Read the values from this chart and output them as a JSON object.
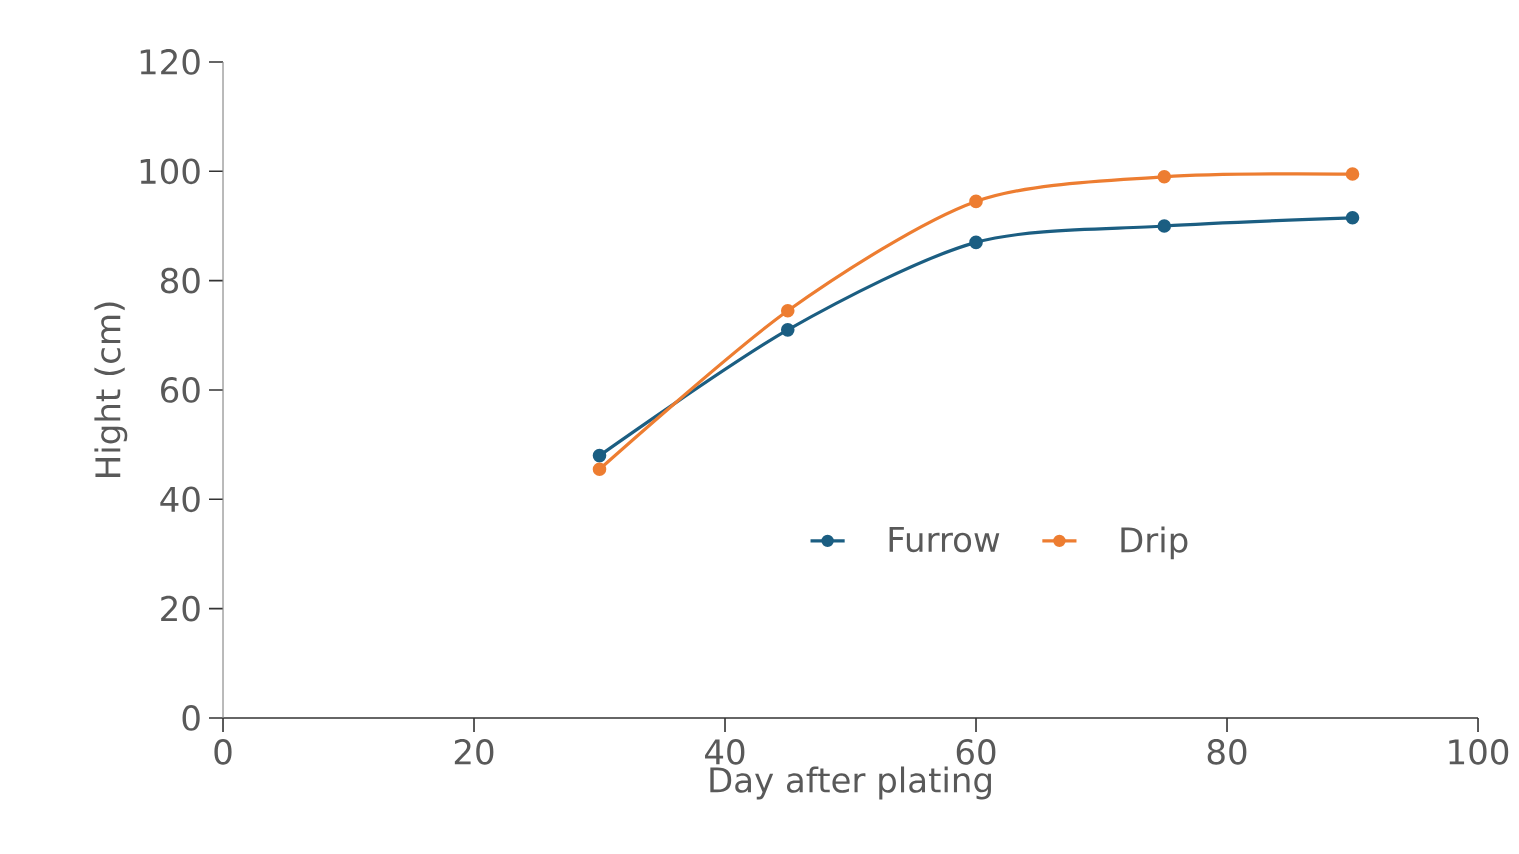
{
  "chart_data": {
    "type": "line",
    "xlabel": "Day after plating",
    "ylabel": "Hight (cm)",
    "x": [
      30,
      45,
      60,
      75,
      90
    ],
    "series": [
      {
        "name": "Furrow",
        "color": "#1b5e82",
        "values": [
          48,
          71,
          87,
          90,
          91.5
        ]
      },
      {
        "name": "Drip",
        "color": "#ed7d31",
        "values": [
          45.5,
          74.5,
          94.5,
          99,
          99.5
        ]
      }
    ],
    "xlim": [
      0,
      100
    ],
    "ylim": [
      0,
      120
    ],
    "xticks": [
      0,
      20,
      40,
      60,
      80,
      100
    ],
    "yticks": [
      0,
      20,
      40,
      60,
      80,
      100,
      120
    ],
    "grid": false,
    "legend": "bottom",
    "marker": "circle",
    "line_style": "solid"
  }
}
